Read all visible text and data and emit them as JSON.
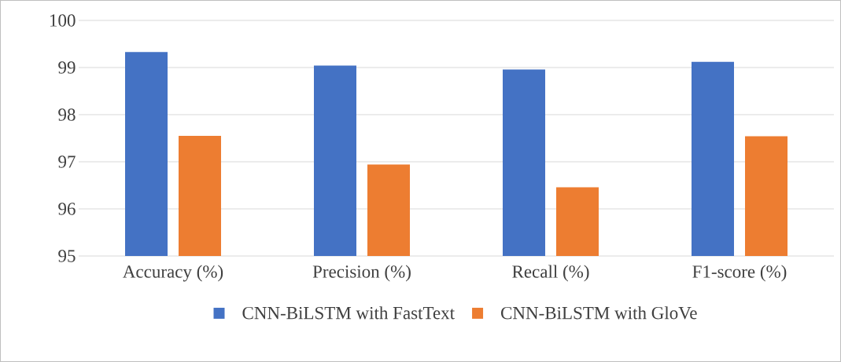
{
  "chart_data": {
    "type": "bar",
    "categories": [
      "Accuracy (%)",
      "Precision (%)",
      "Recall (%)",
      "F1-score (%)"
    ],
    "series": [
      {
        "name": "CNN-BiLSTM with FastText",
        "color": "#4472c4",
        "values": [
          99.33,
          99.04,
          98.96,
          99.12
        ]
      },
      {
        "name": "CNN-BiLSTM with GloVe",
        "color": "#ed7d31",
        "values": [
          97.55,
          96.94,
          96.46,
          97.54
        ]
      }
    ],
    "ylim": [
      95,
      100
    ],
    "yticks": [
      95,
      96,
      97,
      98,
      99,
      100
    ],
    "grid": "y",
    "legend": "bottom"
  }
}
